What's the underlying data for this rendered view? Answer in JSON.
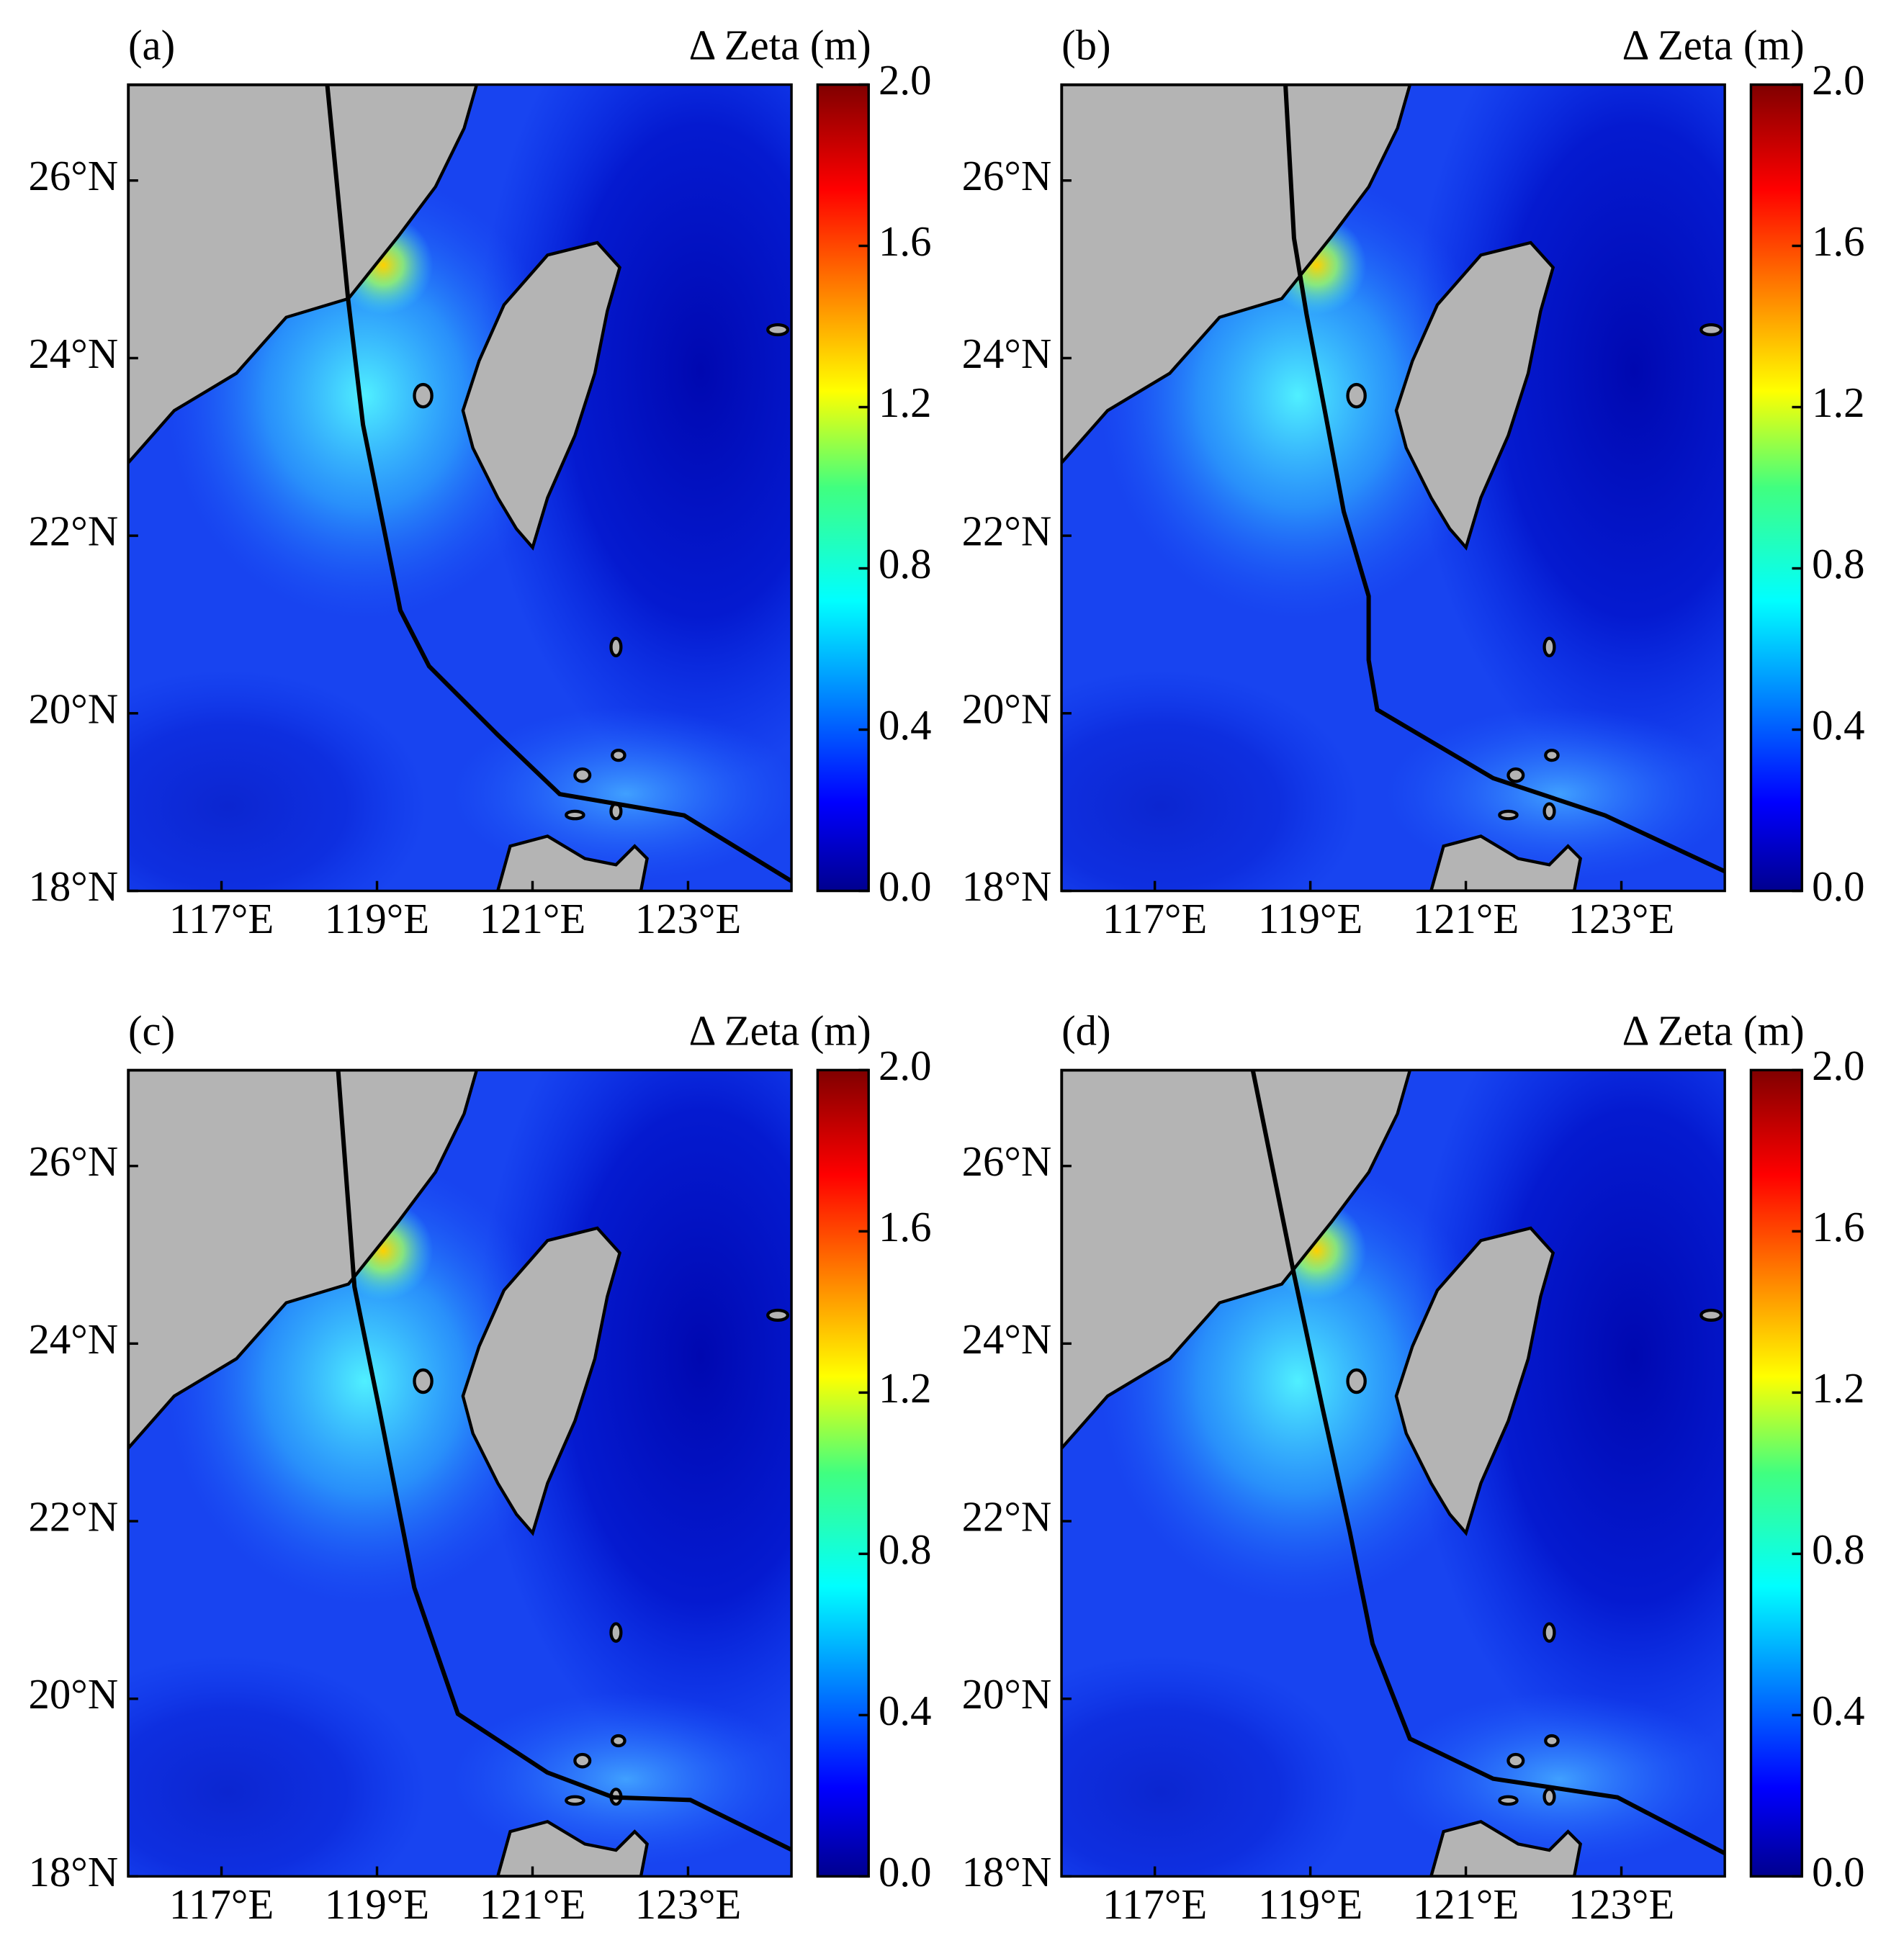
{
  "chart_data": [
    {
      "type": "map",
      "label": "(a)",
      "colorbar_title": "Δ Zeta (m)",
      "colormap": "jet",
      "clim": [
        0,
        2
      ],
      "cticks": [
        {
          "value": 0,
          "label": "0.0"
        },
        0.4,
        0.8,
        1.2,
        1.6,
        {
          "value": 2,
          "label": "2.0"
        }
      ],
      "xlim": [
        115.8,
        124.33
      ],
      "ylim": [
        18,
        27.08
      ],
      "xticks": [
        {
          "value": 117,
          "label": "117°E"
        },
        {
          "value": 119,
          "label": "119°E"
        },
        {
          "value": 121,
          "label": "121°E"
        },
        {
          "value": 123,
          "label": "123°E"
        }
      ],
      "yticks": [
        {
          "value": 18,
          "label": "18°N"
        },
        {
          "value": 20,
          "label": "20°N"
        },
        {
          "value": 22,
          "label": "22°N"
        },
        {
          "value": 24,
          "label": "24°N"
        },
        {
          "value": 26,
          "label": "26°N"
        }
      ],
      "track": {
        "color": "#000000",
        "x": [
          118.36,
          118.63,
          118.82,
          119.3,
          119.67,
          120.55,
          121.35,
          122.95,
          124.33
        ],
        "y": [
          27.08,
          24.65,
          23.25,
          21.16,
          20.53,
          19.76,
          19.09,
          18.85,
          18.11
        ]
      }
    },
    {
      "type": "map",
      "label": "(b)",
      "colorbar_title": "Δ Zeta (m)",
      "colormap": "jet",
      "clim": [
        0,
        2
      ],
      "cticks": [
        {
          "value": 0,
          "label": "0.0"
        },
        0.4,
        0.8,
        1.2,
        1.6,
        {
          "value": 2,
          "label": "2.0"
        }
      ],
      "xlim": [
        115.8,
        124.33
      ],
      "ylim": [
        18,
        27.08
      ],
      "xticks": [
        {
          "value": 117,
          "label": "117°E"
        },
        {
          "value": 119,
          "label": "119°E"
        },
        {
          "value": 121,
          "label": "121°E"
        },
        {
          "value": 123,
          "label": "123°E"
        }
      ],
      "yticks": [
        {
          "value": 18,
          "label": "18°N"
        },
        {
          "value": 20,
          "label": "20°N"
        },
        {
          "value": 22,
          "label": "22°N"
        },
        {
          "value": 24,
          "label": "24°N"
        },
        {
          "value": 26,
          "label": "26°N"
        }
      ],
      "track": {
        "color": "#000000",
        "x": [
          118.68,
          118.79,
          118.95,
          119.19,
          119.43,
          119.75,
          119.75,
          119.86,
          121.35,
          122.79,
          124.33
        ],
        "y": [
          27.08,
          25.35,
          24.5,
          23.39,
          22.27,
          21.32,
          20.6,
          20.04,
          19.27,
          18.85,
          18.22
        ]
      }
    },
    {
      "type": "map",
      "label": "(c)",
      "colorbar_title": "Δ Zeta (m)",
      "colormap": "jet",
      "clim": [
        0,
        2
      ],
      "cticks": [
        {
          "value": 0,
          "label": "0.0"
        },
        0.4,
        0.8,
        1.2,
        1.6,
        {
          "value": 2,
          "label": "2.0"
        }
      ],
      "xlim": [
        115.8,
        124.33
      ],
      "ylim": [
        18,
        27.08
      ],
      "xticks": [
        {
          "value": 117,
          "label": "117°E"
        },
        {
          "value": 119,
          "label": "119°E"
        },
        {
          "value": 121,
          "label": "121°E"
        },
        {
          "value": 123,
          "label": "123°E"
        }
      ],
      "yticks": [
        {
          "value": 18,
          "label": "18°N"
        },
        {
          "value": 20,
          "label": "20°N"
        },
        {
          "value": 22,
          "label": "22°N"
        },
        {
          "value": 24,
          "label": "24°N"
        },
        {
          "value": 26,
          "label": "26°N"
        }
      ],
      "track": {
        "color": "#000000",
        "x": [
          118.5,
          118.71,
          119.03,
          119.48,
          120.04,
          121.19,
          122.04,
          123.03,
          124.33
        ],
        "y": [
          27.08,
          24.64,
          23.26,
          21.25,
          19.83,
          19.17,
          18.89,
          18.86,
          18.3
        ]
      }
    },
    {
      "type": "map",
      "label": "(d)",
      "colorbar_title": "Δ Zeta (m)",
      "colormap": "jet",
      "clim": [
        0,
        2
      ],
      "cticks": [
        {
          "value": 0,
          "label": "0.0"
        },
        0.4,
        0.8,
        1.2,
        1.6,
        {
          "value": 2,
          "label": "2.0"
        }
      ],
      "xlim": [
        115.8,
        124.33
      ],
      "ylim": [
        18,
        27.08
      ],
      "xticks": [
        {
          "value": 117,
          "label": "117°E"
        },
        {
          "value": 119,
          "label": "119°E"
        },
        {
          "value": 121,
          "label": "121°E"
        },
        {
          "value": 123,
          "label": "123°E"
        }
      ],
      "yticks": [
        {
          "value": 18,
          "label": "18°N"
        },
        {
          "value": 20,
          "label": "20°N"
        },
        {
          "value": 22,
          "label": "22°N"
        },
        {
          "value": 24,
          "label": "24°N"
        },
        {
          "value": 26,
          "label": "26°N"
        }
      ],
      "track": {
        "color": "#000000",
        "x": [
          118.26,
          118.79,
          119.16,
          119.51,
          119.8,
          120.28,
          121.35,
          122.95,
          124.33
        ],
        "y": [
          27.08,
          24.78,
          23.26,
          21.87,
          20.62,
          19.55,
          19.1,
          18.89,
          18.26
        ]
      }
    }
  ]
}
